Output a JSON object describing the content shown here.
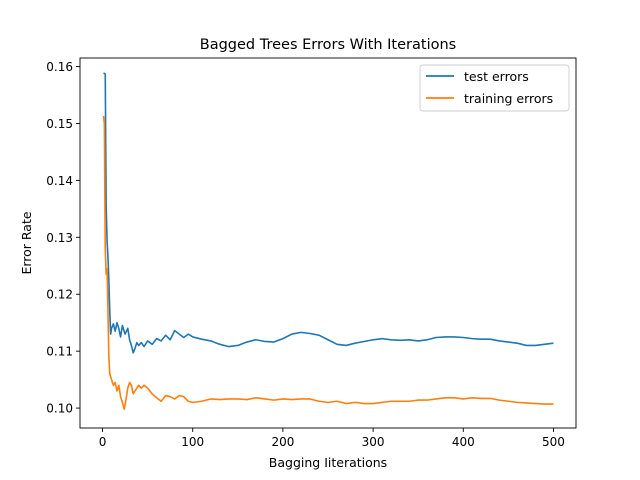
{
  "chart_data": {
    "type": "line",
    "title": "Bagged Trees Errors With Iterations",
    "xlabel": "Bagging Iiterations",
    "ylabel": "Error Rate",
    "xlim": [
      -25,
      525
    ],
    "ylim": [
      0.0965,
      0.1615
    ],
    "xticks": [
      0,
      100,
      200,
      300,
      400,
      500
    ],
    "yticks": [
      0.1,
      0.11,
      0.12,
      0.13,
      0.14,
      0.15,
      0.16
    ],
    "ytick_labels": [
      "0.10",
      "0.11",
      "0.12",
      "0.13",
      "0.14",
      "0.15",
      "0.16"
    ],
    "legend_position": "upper right",
    "grid": false,
    "series": [
      {
        "name": "test errors",
        "color": "#1f77b4",
        "points": [
          [
            1,
            0.1588
          ],
          [
            2,
            0.1588
          ],
          [
            3,
            0.1587
          ],
          [
            4,
            0.1355
          ],
          [
            5,
            0.1295
          ],
          [
            6,
            0.1265
          ],
          [
            7,
            0.1225
          ],
          [
            8,
            0.117
          ],
          [
            9,
            0.113
          ],
          [
            10,
            0.114
          ],
          [
            12,
            0.1148
          ],
          [
            14,
            0.1135
          ],
          [
            16,
            0.115
          ],
          [
            18,
            0.114
          ],
          [
            20,
            0.1125
          ],
          [
            22,
            0.1145
          ],
          [
            25,
            0.113
          ],
          [
            28,
            0.114
          ],
          [
            30,
            0.112
          ],
          [
            32,
            0.111
          ],
          [
            34,
            0.1097
          ],
          [
            36,
            0.1105
          ],
          [
            38,
            0.1115
          ],
          [
            40,
            0.111
          ],
          [
            43,
            0.1115
          ],
          [
            46,
            0.1108
          ],
          [
            50,
            0.1118
          ],
          [
            55,
            0.1112
          ],
          [
            60,
            0.1122
          ],
          [
            65,
            0.1118
          ],
          [
            70,
            0.1128
          ],
          [
            75,
            0.112
          ],
          [
            80,
            0.1136
          ],
          [
            85,
            0.113
          ],
          [
            90,
            0.1124
          ],
          [
            95,
            0.113
          ],
          [
            100,
            0.1125
          ],
          [
            110,
            0.1121
          ],
          [
            120,
            0.1118
          ],
          [
            130,
            0.1112
          ],
          [
            140,
            0.1108
          ],
          [
            150,
            0.111
          ],
          [
            160,
            0.1116
          ],
          [
            170,
            0.112
          ],
          [
            180,
            0.1117
          ],
          [
            190,
            0.1116
          ],
          [
            200,
            0.1122
          ],
          [
            210,
            0.113
          ],
          [
            220,
            0.1133
          ],
          [
            230,
            0.1131
          ],
          [
            240,
            0.1128
          ],
          [
            250,
            0.112
          ],
          [
            260,
            0.1112
          ],
          [
            270,
            0.111
          ],
          [
            280,
            0.1114
          ],
          [
            290,
            0.1117
          ],
          [
            300,
            0.112
          ],
          [
            310,
            0.1122
          ],
          [
            320,
            0.112
          ],
          [
            330,
            0.1119
          ],
          [
            340,
            0.112
          ],
          [
            350,
            0.1118
          ],
          [
            360,
            0.112
          ],
          [
            370,
            0.1124
          ],
          [
            380,
            0.1125
          ],
          [
            390,
            0.1125
          ],
          [
            400,
            0.1124
          ],
          [
            410,
            0.1122
          ],
          [
            420,
            0.1121
          ],
          [
            430,
            0.1121
          ],
          [
            440,
            0.1118
          ],
          [
            450,
            0.1116
          ],
          [
            460,
            0.1114
          ],
          [
            470,
            0.111
          ],
          [
            480,
            0.111
          ],
          [
            490,
            0.1112
          ],
          [
            500,
            0.1114
          ]
        ]
      },
      {
        "name": "training errors",
        "color": "#ff7f0e",
        "points": [
          [
            1,
            0.1513
          ],
          [
            2,
            0.15
          ],
          [
            3,
            0.128
          ],
          [
            4,
            0.1235
          ],
          [
            5,
            0.1245
          ],
          [
            6,
            0.117
          ],
          [
            7,
            0.109
          ],
          [
            8,
            0.106
          ],
          [
            9,
            0.1055
          ],
          [
            10,
            0.105
          ],
          [
            12,
            0.104
          ],
          [
            14,
            0.1045
          ],
          [
            16,
            0.103
          ],
          [
            18,
            0.104
          ],
          [
            20,
            0.102
          ],
          [
            22,
            0.101
          ],
          [
            24,
            0.0998
          ],
          [
            26,
            0.1015
          ],
          [
            28,
            0.1035
          ],
          [
            30,
            0.1045
          ],
          [
            32,
            0.104
          ],
          [
            34,
            0.1025
          ],
          [
            36,
            0.103
          ],
          [
            38,
            0.1035
          ],
          [
            40,
            0.104
          ],
          [
            43,
            0.1035
          ],
          [
            46,
            0.104
          ],
          [
            50,
            0.1035
          ],
          [
            55,
            0.1025
          ],
          [
            60,
            0.1018
          ],
          [
            65,
            0.1012
          ],
          [
            70,
            0.1022
          ],
          [
            75,
            0.102
          ],
          [
            80,
            0.1016
          ],
          [
            85,
            0.1022
          ],
          [
            90,
            0.102
          ],
          [
            95,
            0.1012
          ],
          [
            100,
            0.101
          ],
          [
            110,
            0.1012
          ],
          [
            120,
            0.1016
          ],
          [
            130,
            0.1015
          ],
          [
            140,
            0.1016
          ],
          [
            150,
            0.1016
          ],
          [
            160,
            0.1015
          ],
          [
            170,
            0.1018
          ],
          [
            180,
            0.1016
          ],
          [
            190,
            0.1014
          ],
          [
            200,
            0.1016
          ],
          [
            210,
            0.1015
          ],
          [
            220,
            0.1016
          ],
          [
            230,
            0.1016
          ],
          [
            240,
            0.1012
          ],
          [
            250,
            0.101
          ],
          [
            260,
            0.1012
          ],
          [
            270,
            0.1008
          ],
          [
            280,
            0.101
          ],
          [
            290,
            0.1008
          ],
          [
            300,
            0.1008
          ],
          [
            310,
            0.101
          ],
          [
            320,
            0.1012
          ],
          [
            330,
            0.1012
          ],
          [
            340,
            0.1012
          ],
          [
            350,
            0.1014
          ],
          [
            360,
            0.1014
          ],
          [
            370,
            0.1016
          ],
          [
            380,
            0.1018
          ],
          [
            390,
            0.1018
          ],
          [
            400,
            0.1016
          ],
          [
            410,
            0.1018
          ],
          [
            420,
            0.1017
          ],
          [
            430,
            0.1017
          ],
          [
            440,
            0.1014
          ],
          [
            450,
            0.1012
          ],
          [
            460,
            0.101
          ],
          [
            470,
            0.1009
          ],
          [
            480,
            0.1008
          ],
          [
            490,
            0.1007
          ],
          [
            500,
            0.1007
          ]
        ]
      }
    ]
  }
}
